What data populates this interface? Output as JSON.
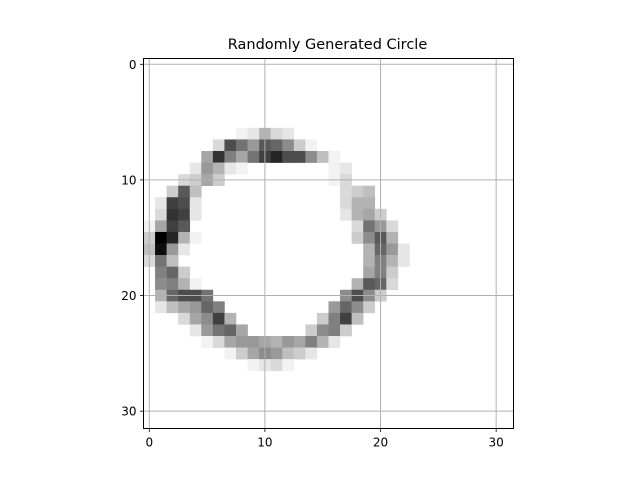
{
  "chart_data": {
    "type": "heatmap",
    "title": "Randomly Generated Circle",
    "xlabel": "",
    "ylabel": "",
    "colormap": "gray_r",
    "grid": true,
    "grid_color": "#b0b0b0",
    "xlim": [
      -0.5,
      31.5
    ],
    "ylim": [
      31.5,
      -0.5
    ],
    "y_inverted": true,
    "xticks": [
      0,
      10,
      20,
      30
    ],
    "yticks": [
      0,
      10,
      20,
      30
    ],
    "rows": 32,
    "cols": 32,
    "cells": [
      [
        6,
        8,
        0.05
      ],
      [
        6,
        9,
        0.1
      ],
      [
        6,
        10,
        0.3
      ],
      [
        6,
        11,
        0.15
      ],
      [
        6,
        12,
        0.1
      ],
      [
        7,
        6,
        0.15
      ],
      [
        7,
        7,
        0.7
      ],
      [
        7,
        8,
        0.55
      ],
      [
        7,
        9,
        0.4
      ],
      [
        7,
        10,
        0.65
      ],
      [
        7,
        11,
        0.6
      ],
      [
        7,
        12,
        0.45
      ],
      [
        7,
        13,
        0.2
      ],
      [
        7,
        14,
        0.05
      ],
      [
        8,
        5,
        0.35
      ],
      [
        8,
        6,
        0.8
      ],
      [
        8,
        7,
        0.5
      ],
      [
        8,
        8,
        0.35
      ],
      [
        8,
        9,
        0.55
      ],
      [
        8,
        10,
        0.75
      ],
      [
        8,
        11,
        0.85
      ],
      [
        8,
        12,
        0.7
      ],
      [
        8,
        13,
        0.7
      ],
      [
        8,
        14,
        0.45
      ],
      [
        8,
        15,
        0.25
      ],
      [
        8,
        16,
        0.05
      ],
      [
        9,
        4,
        0.1
      ],
      [
        9,
        5,
        0.4
      ],
      [
        9,
        6,
        0.3
      ],
      [
        9,
        7,
        0.1
      ],
      [
        9,
        8,
        0.05
      ],
      [
        9,
        16,
        0.05
      ],
      [
        9,
        17,
        0.1
      ],
      [
        10,
        3,
        0.15
      ],
      [
        10,
        4,
        0.2
      ],
      [
        10,
        5,
        0.35
      ],
      [
        10,
        6,
        0.2
      ],
      [
        10,
        16,
        0.05
      ],
      [
        10,
        17,
        0.15
      ],
      [
        11,
        2,
        0.2
      ],
      [
        11,
        3,
        0.65
      ],
      [
        11,
        4,
        0.25
      ],
      [
        11,
        17,
        0.15
      ],
      [
        11,
        18,
        0.2
      ],
      [
        11,
        19,
        0.25
      ],
      [
        12,
        1,
        0.1
      ],
      [
        12,
        2,
        0.75
      ],
      [
        12,
        3,
        0.7
      ],
      [
        12,
        4,
        0.1
      ],
      [
        12,
        17,
        0.15
      ],
      [
        12,
        18,
        0.3
      ],
      [
        12,
        19,
        0.3
      ],
      [
        13,
        1,
        0.15
      ],
      [
        13,
        2,
        0.8
      ],
      [
        13,
        3,
        0.75
      ],
      [
        13,
        4,
        0.1
      ],
      [
        13,
        17,
        0.1
      ],
      [
        13,
        18,
        0.3
      ],
      [
        13,
        19,
        0.35
      ],
      [
        13,
        20,
        0.2
      ],
      [
        14,
        0,
        0.05
      ],
      [
        14,
        1,
        0.35
      ],
      [
        14,
        2,
        0.75
      ],
      [
        14,
        3,
        0.65
      ],
      [
        14,
        18,
        0.15
      ],
      [
        14,
        19,
        0.55
      ],
      [
        14,
        20,
        0.4
      ],
      [
        14,
        21,
        0.15
      ],
      [
        15,
        0,
        0.2
      ],
      [
        15,
        1,
        1.0
      ],
      [
        15,
        2,
        0.85
      ],
      [
        15,
        3,
        0.3
      ],
      [
        15,
        4,
        0.05
      ],
      [
        15,
        18,
        0.2
      ],
      [
        15,
        19,
        0.45
      ],
      [
        15,
        20,
        0.65
      ],
      [
        15,
        21,
        0.3
      ],
      [
        16,
        0,
        0.25
      ],
      [
        16,
        1,
        0.95
      ],
      [
        16,
        2,
        0.4
      ],
      [
        16,
        3,
        0.1
      ],
      [
        16,
        19,
        0.3
      ],
      [
        16,
        20,
        0.6
      ],
      [
        16,
        21,
        0.4
      ],
      [
        16,
        22,
        0.1
      ],
      [
        17,
        0,
        0.15
      ],
      [
        17,
        1,
        0.55
      ],
      [
        17,
        2,
        0.25
      ],
      [
        17,
        19,
        0.3
      ],
      [
        17,
        20,
        0.5
      ],
      [
        17,
        21,
        0.3
      ],
      [
        17,
        22,
        0.1
      ],
      [
        18,
        1,
        0.5
      ],
      [
        18,
        2,
        0.6
      ],
      [
        18,
        3,
        0.2
      ],
      [
        18,
        19,
        0.35
      ],
      [
        18,
        20,
        0.5
      ],
      [
        18,
        21,
        0.2
      ],
      [
        19,
        1,
        0.45
      ],
      [
        19,
        2,
        0.5
      ],
      [
        19,
        3,
        0.3
      ],
      [
        19,
        4,
        0.05
      ],
      [
        19,
        18,
        0.3
      ],
      [
        19,
        19,
        0.65
      ],
      [
        19,
        20,
        0.6
      ],
      [
        19,
        21,
        0.15
      ],
      [
        20,
        1,
        0.3
      ],
      [
        20,
        2,
        0.6
      ],
      [
        20,
        3,
        0.7
      ],
      [
        20,
        4,
        0.7
      ],
      [
        20,
        5,
        0.55
      ],
      [
        20,
        17,
        0.45
      ],
      [
        20,
        18,
        0.7
      ],
      [
        20,
        19,
        0.45
      ],
      [
        20,
        20,
        0.2
      ],
      [
        21,
        1,
        0.1
      ],
      [
        21,
        2,
        0.25
      ],
      [
        21,
        3,
        0.35
      ],
      [
        21,
        4,
        0.4
      ],
      [
        21,
        5,
        0.6
      ],
      [
        21,
        6,
        0.5
      ],
      [
        21,
        16,
        0.4
      ],
      [
        21,
        17,
        0.6
      ],
      [
        21,
        18,
        0.45
      ],
      [
        21,
        19,
        0.2
      ],
      [
        22,
        3,
        0.15
      ],
      [
        22,
        4,
        0.35
      ],
      [
        22,
        5,
        0.45
      ],
      [
        22,
        6,
        0.75
      ],
      [
        22,
        7,
        0.3
      ],
      [
        22,
        15,
        0.2
      ],
      [
        22,
        16,
        0.5
      ],
      [
        22,
        17,
        0.75
      ],
      [
        22,
        18,
        0.25
      ],
      [
        23,
        4,
        0.1
      ],
      [
        23,
        5,
        0.4
      ],
      [
        23,
        6,
        0.55
      ],
      [
        23,
        7,
        0.6
      ],
      [
        23,
        8,
        0.35
      ],
      [
        23,
        14,
        0.2
      ],
      [
        23,
        15,
        0.45
      ],
      [
        23,
        16,
        0.5
      ],
      [
        23,
        17,
        0.2
      ],
      [
        24,
        5,
        0.05
      ],
      [
        24,
        6,
        0.15
      ],
      [
        24,
        7,
        0.35
      ],
      [
        24,
        8,
        0.4
      ],
      [
        24,
        9,
        0.4
      ],
      [
        24,
        10,
        0.35
      ],
      [
        24,
        11,
        0.3
      ],
      [
        24,
        12,
        0.4
      ],
      [
        24,
        13,
        0.35
      ],
      [
        24,
        14,
        0.5
      ],
      [
        24,
        15,
        0.3
      ],
      [
        24,
        16,
        0.1
      ],
      [
        25,
        7,
        0.05
      ],
      [
        25,
        8,
        0.2
      ],
      [
        25,
        9,
        0.35
      ],
      [
        25,
        10,
        0.45
      ],
      [
        25,
        11,
        0.4
      ],
      [
        25,
        12,
        0.25
      ],
      [
        25,
        13,
        0.2
      ],
      [
        25,
        14,
        0.1
      ],
      [
        26,
        9,
        0.05
      ],
      [
        26,
        10,
        0.1
      ],
      [
        26,
        11,
        0.15
      ],
      [
        26,
        12,
        0.05
      ]
    ]
  }
}
